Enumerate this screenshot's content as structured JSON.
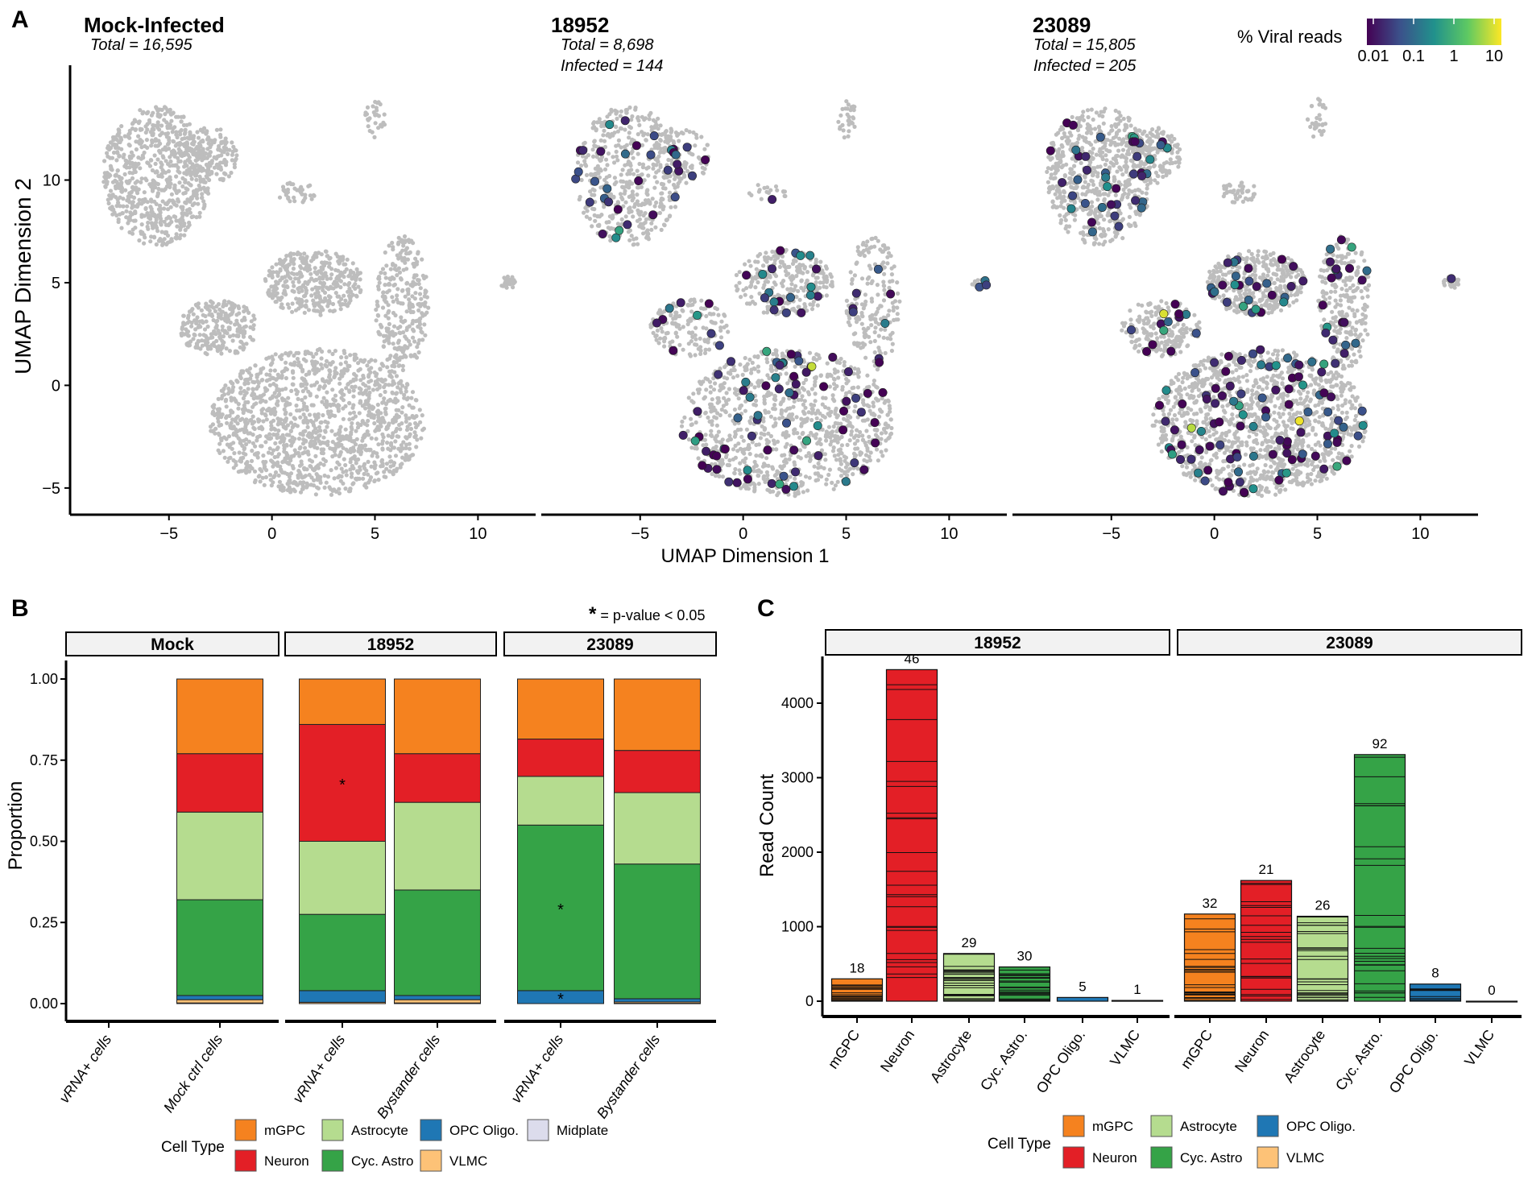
{
  "colors": {
    "mGPC": "#f5821f",
    "Neuron": "#e31f26",
    "Astrocyte": "#b5dc8f",
    "Cyc. Astro": "#35a347",
    "OPC Oligo.": "#1f77b4",
    "VLMC": "#fdc277",
    "Midplate": "#dcdcec",
    "umap_gray": "#bdbdbd"
  },
  "chart_data": [
    {
      "panel": "A",
      "type": "scatter",
      "facets": [
        {
          "title": "Mock-Infected",
          "total": "Total = 16,595",
          "infected": null,
          "n_infected": 0
        },
        {
          "title": "18952",
          "total": "Total = 8,698",
          "infected": "Infected = 144",
          "n_infected": 144
        },
        {
          "title": "23089",
          "total": "Total = 15,805",
          "infected": "Infected = 205",
          "n_infected": 205
        }
      ],
      "xlabel": "UMAP Dimension 1",
      "ylabel": "UMAP Dimension 2",
      "xticks": [
        -5,
        0,
        5,
        10
      ],
      "yticks": [
        -5,
        0,
        5,
        10
      ],
      "xlim": [
        -9.8,
        12.8
      ],
      "ylim": [
        -6.3,
        15.2
      ],
      "clusters": [
        {
          "cx": -5.6,
          "cy": 10.2,
          "rx": 2.6,
          "ry": 3.4,
          "w": 0.22
        },
        {
          "cx": -3.0,
          "cy": 11.2,
          "rx": 1.4,
          "ry": 1.4,
          "w": 0.05
        },
        {
          "cx": 5.0,
          "cy": 13.0,
          "rx": 0.5,
          "ry": 1.0,
          "w": 0.01
        },
        {
          "cx": 1.2,
          "cy": 9.4,
          "rx": 1.0,
          "ry": 0.5,
          "w": 0.01
        },
        {
          "cx": 2.2,
          "cy": -1.8,
          "rx": 5.2,
          "ry": 3.6,
          "w": 0.42
        },
        {
          "cx": -2.6,
          "cy": 2.8,
          "rx": 1.9,
          "ry": 1.4,
          "w": 0.07
        },
        {
          "cx": 6.3,
          "cy": 4.0,
          "rx": 1.3,
          "ry": 3.3,
          "w": 0.09
        },
        {
          "cx": 2.0,
          "cy": 5.0,
          "rx": 2.4,
          "ry": 1.6,
          "w": 0.12
        },
        {
          "cx": 11.5,
          "cy": 5.0,
          "rx": 0.4,
          "ry": 0.3,
          "w": 0.01
        }
      ],
      "colorbar": {
        "title": "% Viral reads",
        "ticks": [
          "0.01",
          "0.1",
          "1",
          "10"
        ],
        "range": [
          0.01,
          10
        ]
      }
    },
    {
      "panel": "B",
      "type": "bar",
      "stacked": true,
      "title_note": "= p-value < 0.05",
      "ylabel": "Proportion",
      "yticks": [
        "0.00",
        "0.25",
        "0.50",
        "0.75",
        "1.00"
      ],
      "ylim": [
        0,
        1
      ],
      "stack_order": [
        "Midplate",
        "VLMC",
        "OPC Oligo.",
        "Cyc. Astro",
        "Astrocyte",
        "Neuron",
        "mGPC"
      ],
      "facets": [
        {
          "label": "Mock",
          "bars": [
            {
              "label": "vRNA+ cells",
              "values": null
            },
            {
              "label": "Mock ctrl cells",
              "values": {
                "Midplate": 0.002,
                "VLMC": 0.01,
                "OPC Oligo.": 0.013,
                "Cyc. Astro": 0.295,
                "Astrocyte": 0.27,
                "Neuron": 0.18,
                "mGPC": 0.23
              },
              "sig": []
            }
          ]
        },
        {
          "label": "18952",
          "bars": [
            {
              "label": "vRNA+ cells",
              "values": {
                "Midplate": 0,
                "VLMC": 0.004,
                "OPC Oligo.": 0.036,
                "Cyc. Astro": 0.235,
                "Astrocyte": 0.225,
                "Neuron": 0.36,
                "mGPC": 0.14
              },
              "sig": [
                "Neuron"
              ]
            },
            {
              "label": "Bystander cells",
              "values": {
                "Midplate": 0.002,
                "VLMC": 0.01,
                "OPC Oligo.": 0.013,
                "Cyc. Astro": 0.325,
                "Astrocyte": 0.27,
                "Neuron": 0.15,
                "mGPC": 0.23
              },
              "sig": []
            }
          ]
        },
        {
          "label": "23089",
          "bars": [
            {
              "label": "vRNA+ cells",
              "values": {
                "Midplate": 0,
                "VLMC": 0,
                "OPC Oligo.": 0.04,
                "Cyc. Astro": 0.51,
                "Astrocyte": 0.15,
                "Neuron": 0.115,
                "mGPC": 0.185
              },
              "sig": [
                "OPC Oligo.",
                "Cyc. Astro"
              ]
            },
            {
              "label": "Bystander cells",
              "values": {
                "Midplate": 0.001,
                "VLMC": 0.004,
                "OPC Oligo.": 0.01,
                "Cyc. Astro": 0.415,
                "Astrocyte": 0.22,
                "Neuron": 0.13,
                "mGPC": 0.22
              },
              "sig": []
            }
          ]
        }
      ],
      "legend": {
        "title": "Cell Type",
        "items": [
          "mGPC",
          "Neuron",
          "Astrocyte",
          "Cyc. Astro",
          "OPC Oligo.",
          "VLMC",
          "Midplate"
        ]
      }
    },
    {
      "panel": "C",
      "type": "bar",
      "ylabel": "Read Count",
      "yticks": [
        0,
        1000,
        2000,
        3000,
        4000
      ],
      "ylim": [
        0,
        4650
      ],
      "categories": [
        "mGPC",
        "Neuron",
        "Astrocyte",
        "Cyc. Astro.",
        "OPC Oligo.",
        "VLMC"
      ],
      "color_keys": [
        "mGPC",
        "Neuron",
        "Astrocyte",
        "Cyc. Astro",
        "OPC Oligo.",
        "VLMC"
      ],
      "facets": [
        {
          "label": "18952",
          "values": [
            300,
            4450,
            640,
            460,
            50,
            10
          ],
          "cell_counts": [
            "18",
            "46",
            "29",
            "30",
            "5",
            "1"
          ]
        },
        {
          "label": "23089",
          "values": [
            1170,
            1620,
            1140,
            3310,
            230,
            0
          ],
          "cell_counts": [
            "32",
            "21",
            "26",
            "92",
            "8",
            "0"
          ]
        }
      ],
      "legend": {
        "title": "Cell Type",
        "items": [
          "mGPC",
          "Neuron",
          "Astrocyte",
          "Cyc. Astro",
          "OPC Oligo.",
          "VLMC"
        ]
      }
    }
  ]
}
